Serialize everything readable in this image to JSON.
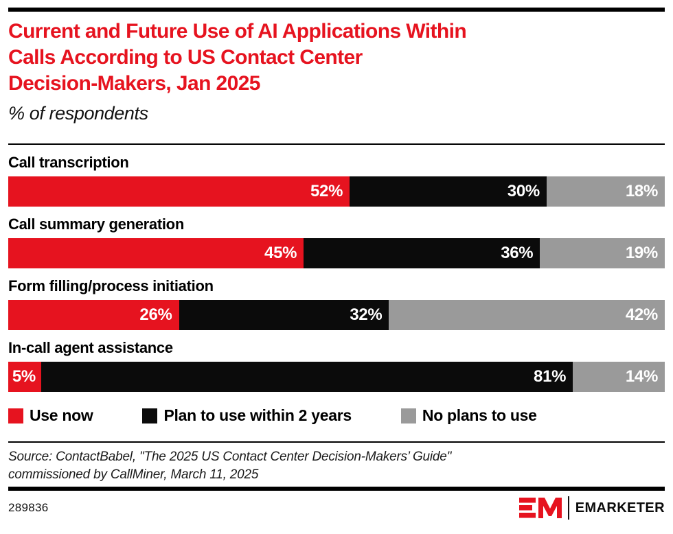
{
  "header": {
    "title_lines": [
      "Current and Future Use of AI Applications Within",
      "Calls According to US Contact Center",
      "Decision-Makers, Jan 2025"
    ],
    "subtitle": "% of respondents"
  },
  "chart_data": {
    "type": "bar",
    "stacked": true,
    "orientation": "horizontal",
    "title": "Current and Future Use of AI Applications Within Calls According to US Contact Center Decision-Makers, Jan 2025",
    "subtitle": "% of respondents",
    "unit": "%",
    "xlim": [
      0,
      100
    ],
    "grid": false,
    "value_labels": "inside-end",
    "legend_position": "bottom",
    "categories": [
      "Call transcription",
      "Call summary generation",
      "Form filling/process initiation",
      "In-call agent assistance"
    ],
    "series": [
      {
        "name": "Use now",
        "color": "#e6131f",
        "values": [
          52,
          45,
          26,
          5
        ]
      },
      {
        "name": "Plan to use within 2 years",
        "color": "#0b0b0b",
        "values": [
          30,
          36,
          32,
          81
        ]
      },
      {
        "name": "No plans to use",
        "color": "#9a9a9a",
        "values": [
          18,
          19,
          42,
          14
        ]
      }
    ]
  },
  "source": {
    "line1": "Source: ContactBabel, \"The 2025 US Contact Center Decision-Makers’ Guide\"",
    "line2": "commissioned by CallMiner, March 11, 2025"
  },
  "footer": {
    "chart_id": "289836",
    "brand": "EMARKETER"
  },
  "colors": {
    "accent_red": "#e6131f",
    "bar_black": "#0b0b0b",
    "bar_gray": "#9a9a9a",
    "rule_black": "#000000"
  }
}
